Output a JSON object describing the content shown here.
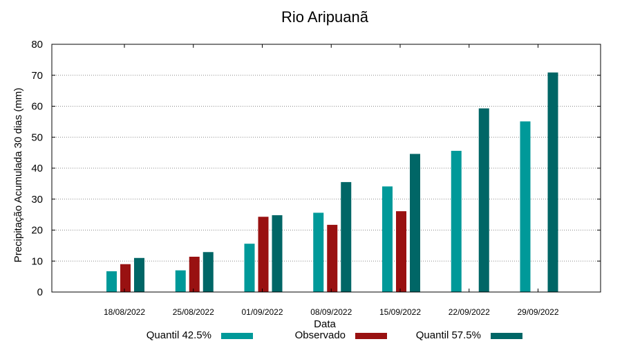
{
  "chart_data": {
    "type": "bar",
    "title": "Rio Aripuanã",
    "xlabel": "Data",
    "ylabel": "Precipitação Acumulada 30 dias (mm)",
    "ylim": [
      0,
      80
    ],
    "yticks": [
      0,
      10,
      20,
      30,
      40,
      50,
      60,
      70,
      80
    ],
    "grid": true,
    "legend_position": "bottom",
    "categories": [
      "18/08/2022",
      "25/08/2022",
      "01/09/2022",
      "08/09/2022",
      "15/09/2022",
      "22/09/2022",
      "29/09/2022"
    ],
    "series": [
      {
        "name": "Quantil 42.5%",
        "color": "#009999",
        "values": [
          6.7,
          7.0,
          15.6,
          25.6,
          34.1,
          45.6,
          55.1
        ]
      },
      {
        "name": "Observado",
        "color": "#991111",
        "values": [
          9.0,
          11.4,
          24.3,
          21.7,
          26.1,
          null,
          null
        ]
      },
      {
        "name": "Quantil 57.5%",
        "color": "#006666",
        "values": [
          11.0,
          12.9,
          24.8,
          35.5,
          44.6,
          59.3,
          70.9
        ]
      }
    ]
  }
}
